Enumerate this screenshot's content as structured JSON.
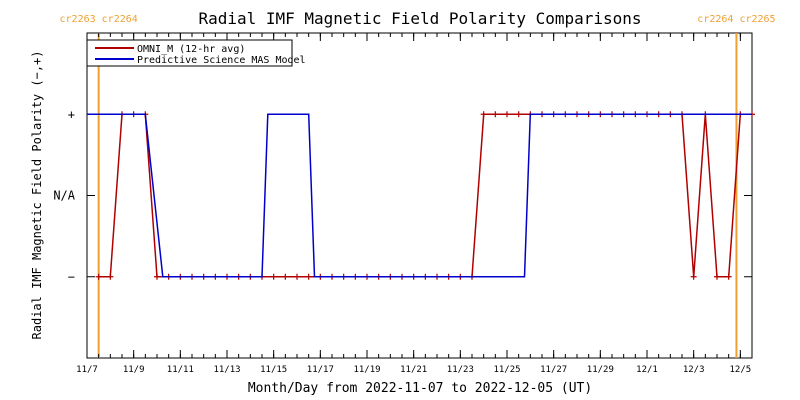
{
  "chart_data": {
    "type": "line",
    "title": "Radial IMF Magnetic Field Polarity Comparisons",
    "xlabel": "Month/Day from 2022-11-07 to 2022-12-05 (UT)",
    "ylabel": "Radial IMF Magnetic Field Polarity (−,+)",
    "x_range": [
      "2022-11-07 00:00",
      "2022-12-05 12:00"
    ],
    "ylim": [
      -2,
      2
    ],
    "x_ticks": [
      {
        "t": "2022-11-07",
        "label": "11/7"
      },
      {
        "t": "2022-11-09",
        "label": "11/9"
      },
      {
        "t": "2022-11-11",
        "label": "11/11"
      },
      {
        "t": "2022-11-13",
        "label": "11/13"
      },
      {
        "t": "2022-11-15",
        "label": "11/15"
      },
      {
        "t": "2022-11-17",
        "label": "11/17"
      },
      {
        "t": "2022-11-19",
        "label": "11/19"
      },
      {
        "t": "2022-11-21",
        "label": "11/21"
      },
      {
        "t": "2022-11-23",
        "label": "11/23"
      },
      {
        "t": "2022-11-25",
        "label": "11/25"
      },
      {
        "t": "2022-11-27",
        "label": "11/27"
      },
      {
        "t": "2022-11-29",
        "label": "11/29"
      },
      {
        "t": "2022-12-01",
        "label": "12/1"
      },
      {
        "t": "2022-12-03",
        "label": "12/3"
      },
      {
        "t": "2022-12-05",
        "label": "12/5"
      }
    ],
    "y_ticks": [
      {
        "value": 1,
        "label": "+"
      },
      {
        "value": 0,
        "label": "N/A"
      },
      {
        "value": -1,
        "label": "−"
      }
    ],
    "legend_position": "top-left",
    "carrington_markers": [
      {
        "t": "2022-11-07 12:00",
        "label": "cr2263 cr2264"
      },
      {
        "t": "2022-12-04 20:00",
        "label": "cr2264 cr2265"
      }
    ],
    "series": [
      {
        "name": "OMNI_M (12-hr avg)",
        "color": "#b00000",
        "markers": true,
        "points": [
          [
            "2022-11-07 12:00",
            -1
          ],
          [
            "2022-11-08 00:00",
            -1
          ],
          [
            "2022-11-08 12:00",
            1
          ],
          [
            "2022-11-09 00:00",
            1
          ],
          [
            "2022-11-09 12:00",
            1
          ],
          [
            "2022-11-10 00:00",
            -1
          ],
          [
            "2022-11-10 12:00",
            -1
          ],
          [
            "2022-11-11 00:00",
            -1
          ],
          [
            "2022-11-11 12:00",
            -1
          ],
          [
            "2022-11-12 00:00",
            -1
          ],
          [
            "2022-11-12 12:00",
            -1
          ],
          [
            "2022-11-13 00:00",
            -1
          ],
          [
            "2022-11-13 12:00",
            -1
          ],
          [
            "2022-11-14 00:00",
            -1
          ],
          [
            "2022-11-14 12:00",
            -1
          ],
          [
            "2022-11-15 00:00",
            -1
          ],
          [
            "2022-11-15 12:00",
            -1
          ],
          [
            "2022-11-16 00:00",
            -1
          ],
          [
            "2022-11-16 12:00",
            -1
          ],
          [
            "2022-11-17 00:00",
            -1
          ],
          [
            "2022-11-17 12:00",
            -1
          ],
          [
            "2022-11-18 00:00",
            -1
          ],
          [
            "2022-11-18 12:00",
            -1
          ],
          [
            "2022-11-19 00:00",
            -1
          ],
          [
            "2022-11-19 12:00",
            -1
          ],
          [
            "2022-11-20 00:00",
            -1
          ],
          [
            "2022-11-20 12:00",
            -1
          ],
          [
            "2022-11-21 00:00",
            -1
          ],
          [
            "2022-11-21 12:00",
            -1
          ],
          [
            "2022-11-22 00:00",
            -1
          ],
          [
            "2022-11-22 12:00",
            -1
          ],
          [
            "2022-11-23 00:00",
            -1
          ],
          [
            "2022-11-23 12:00",
            -1
          ],
          [
            "2022-11-24 00:00",
            1
          ],
          [
            "2022-11-24 12:00",
            1
          ],
          [
            "2022-11-25 00:00",
            1
          ],
          [
            "2022-11-25 12:00",
            1
          ],
          [
            "2022-11-26 00:00",
            1
          ],
          [
            "2022-11-26 12:00",
            1
          ],
          [
            "2022-11-27 00:00",
            1
          ],
          [
            "2022-11-27 12:00",
            1
          ],
          [
            "2022-11-28 00:00",
            1
          ],
          [
            "2022-11-28 12:00",
            1
          ],
          [
            "2022-11-29 00:00",
            1
          ],
          [
            "2022-11-29 12:00",
            1
          ],
          [
            "2022-11-30 00:00",
            1
          ],
          [
            "2022-11-30 12:00",
            1
          ],
          [
            "2022-12-01 00:00",
            1
          ],
          [
            "2022-12-01 12:00",
            1
          ],
          [
            "2022-12-02 00:00",
            1
          ],
          [
            "2022-12-02 12:00",
            1
          ],
          [
            "2022-12-03 00:00",
            -1
          ],
          [
            "2022-12-03 12:00",
            1
          ],
          [
            "2022-12-04 00:00",
            -1
          ],
          [
            "2022-12-04 12:00",
            -1
          ],
          [
            "2022-12-05 00:00",
            1
          ],
          [
            "2022-12-05 12:00",
            1
          ]
        ]
      },
      {
        "name": "Predictive Science MAS Model",
        "color": "#0000cc",
        "markers": false,
        "points": [
          [
            "2022-11-07 00:00",
            1
          ],
          [
            "2022-11-09 12:00",
            1
          ],
          [
            "2022-11-10 06:00",
            -1
          ],
          [
            "2022-11-14 12:00",
            -1
          ],
          [
            "2022-11-14 18:00",
            1
          ],
          [
            "2022-11-16 12:00",
            1
          ],
          [
            "2022-11-16 18:00",
            -1
          ],
          [
            "2022-11-25 18:00",
            -1
          ],
          [
            "2022-11-26 00:00",
            1
          ],
          [
            "2022-12-05 12:00",
            1
          ]
        ]
      }
    ]
  }
}
